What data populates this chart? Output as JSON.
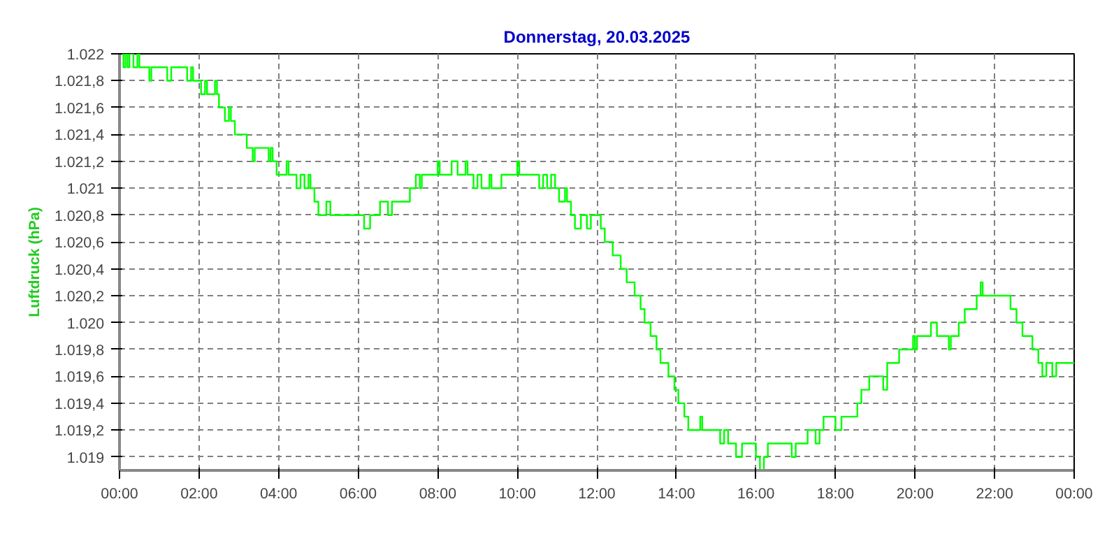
{
  "chart_data": {
    "type": "step",
    "title": "Donnerstag, 20.03.2025",
    "ylabel": "Luftdruck (hPa)",
    "xlim": [
      0,
      24
    ],
    "xticks": [
      {
        "value": 0,
        "label": "00:00"
      },
      {
        "value": 2,
        "label": "02:00"
      },
      {
        "value": 4,
        "label": "04:00"
      },
      {
        "value": 6,
        "label": "06:00"
      },
      {
        "value": 8,
        "label": "08:00"
      },
      {
        "value": 10,
        "label": "10:00"
      },
      {
        "value": 12,
        "label": "12:00"
      },
      {
        "value": 14,
        "label": "14:00"
      },
      {
        "value": 16,
        "label": "16:00"
      },
      {
        "value": 18,
        "label": "18:00"
      },
      {
        "value": 20,
        "label": "20:00"
      },
      {
        "value": 22,
        "label": "22:00"
      },
      {
        "value": 24,
        "label": "00:00"
      }
    ],
    "ylim": [
      1018.9,
      1022
    ],
    "yticks": [
      {
        "value": 1019,
        "label": "1.019"
      },
      {
        "value": 1019.2,
        "label": "1.019,2"
      },
      {
        "value": 1019.4,
        "label": "1.019,4"
      },
      {
        "value": 1019.6,
        "label": "1.019,6"
      },
      {
        "value": 1019.8,
        "label": "1.019,8"
      },
      {
        "value": 1020,
        "label": "1.020"
      },
      {
        "value": 1020.2,
        "label": "1.020,2"
      },
      {
        "value": 1020.4,
        "label": "1.020,4"
      },
      {
        "value": 1020.6,
        "label": "1.020,6"
      },
      {
        "value": 1020.8,
        "label": "1.020,8"
      },
      {
        "value": 1021,
        "label": "1.021"
      },
      {
        "value": 1021.2,
        "label": "1.021,2"
      },
      {
        "value": 1021.4,
        "label": "1.021,4"
      },
      {
        "value": 1021.6,
        "label": "1.021,6"
      },
      {
        "value": 1021.8,
        "label": "1.021,8"
      },
      {
        "value": 1022,
        "label": "1.022"
      }
    ],
    "grid": true,
    "line_style": "solid",
    "marker": "none",
    "series": [
      {
        "color": "#00ff00",
        "x": [
          0,
          0.1,
          0.15,
          0.2,
          0.25,
          0.35,
          0.45,
          0.5,
          0.75,
          0.8,
          1.2,
          1.3,
          1.7,
          1.8,
          1.85,
          2.05,
          2.15,
          2.2,
          2.4,
          2.45,
          2.5,
          2.65,
          2.75,
          2.8,
          2.9,
          3.2,
          3.35,
          3.4,
          3.75,
          3.8,
          3.85,
          3.95,
          4.2,
          4.25,
          4.45,
          4.55,
          4.65,
          4.75,
          4.8,
          4.9,
          5.0,
          5.2,
          5.3,
          6.15,
          6.3,
          6.55,
          6.75,
          6.85,
          7.3,
          7.45,
          7.55,
          7.6,
          8.0,
          8.05,
          8.35,
          8.5,
          8.7,
          8.75,
          8.9,
          9.0,
          9.1,
          9.3,
          9.35,
          9.6,
          10.0,
          10.05,
          10.55,
          10.65,
          10.75,
          10.85,
          10.95,
          11.05,
          11.2,
          11.25,
          11.35,
          11.45,
          11.6,
          11.75,
          11.85,
          12.1,
          12.2,
          12.4,
          12.6,
          12.75,
          12.95,
          13.1,
          13.2,
          13.35,
          13.5,
          13.6,
          13.8,
          13.95,
          14.05,
          14.2,
          14.3,
          14.6,
          14.65,
          15.1,
          15.2,
          15.3,
          15.5,
          15.65,
          16.0,
          16.1,
          16.2,
          16.3,
          16.9,
          17.0,
          17.3,
          17.5,
          17.6,
          17.7,
          18.0,
          18.15,
          18.55,
          18.65,
          18.75,
          18.85,
          19.2,
          19.3,
          19.6,
          19.95,
          20.0,
          20.05,
          20.4,
          20.55,
          20.85,
          20.9,
          21.1,
          21.25,
          21.55,
          21.65,
          21.7,
          22.4,
          22.55,
          22.7,
          22.95,
          23.1,
          23.2,
          23.3,
          23.45,
          23.55,
          24
        ],
        "values": [
          1022,
          1021.9,
          1022,
          1021.9,
          1022,
          1021.9,
          1022,
          1021.9,
          1021.8,
          1021.9,
          1021.8,
          1021.9,
          1021.8,
          1021.9,
          1021.8,
          1021.7,
          1021.8,
          1021.7,
          1021.8,
          1021.7,
          1021.6,
          1021.5,
          1021.6,
          1021.5,
          1021.4,
          1021.3,
          1021.2,
          1021.3,
          1021.2,
          1021.3,
          1021.2,
          1021.1,
          1021.2,
          1021.1,
          1021,
          1021.1,
          1021,
          1021.1,
          1021,
          1020.9,
          1020.8,
          1020.9,
          1020.8,
          1020.7,
          1020.8,
          1020.9,
          1020.8,
          1020.9,
          1021,
          1021.1,
          1021,
          1021.1,
          1021.2,
          1021.1,
          1021.2,
          1021.1,
          1021.2,
          1021.1,
          1021,
          1021.1,
          1021,
          1021.1,
          1021,
          1021.1,
          1021.2,
          1021.1,
          1021,
          1021.1,
          1021,
          1021.1,
          1021,
          1020.9,
          1021,
          1020.9,
          1020.8,
          1020.7,
          1020.8,
          1020.7,
          1020.8,
          1020.7,
          1020.6,
          1020.5,
          1020.4,
          1020.3,
          1020.2,
          1020.1,
          1020,
          1019.9,
          1019.8,
          1019.7,
          1019.6,
          1019.5,
          1019.4,
          1019.3,
          1019.2,
          1019.3,
          1019.2,
          1019.1,
          1019.2,
          1019.1,
          1019,
          1019.1,
          1019,
          1018.9,
          1019,
          1019.1,
          1019,
          1019.1,
          1019.2,
          1019.1,
          1019.2,
          1019.3,
          1019.2,
          1019.3,
          1019.4,
          1019.5,
          1019.5,
          1019.6,
          1019.5,
          1019.7,
          1019.8,
          1019.9,
          1019.8,
          1019.9,
          1020,
          1019.9,
          1019.8,
          1019.9,
          1020,
          1020.1,
          1020.2,
          1020.3,
          1020.2,
          1020.1,
          1020,
          1019.9,
          1019.8,
          1019.7,
          1019.6,
          1019.7,
          1019.6,
          1019.7,
          1019.7
        ]
      }
    ]
  }
}
